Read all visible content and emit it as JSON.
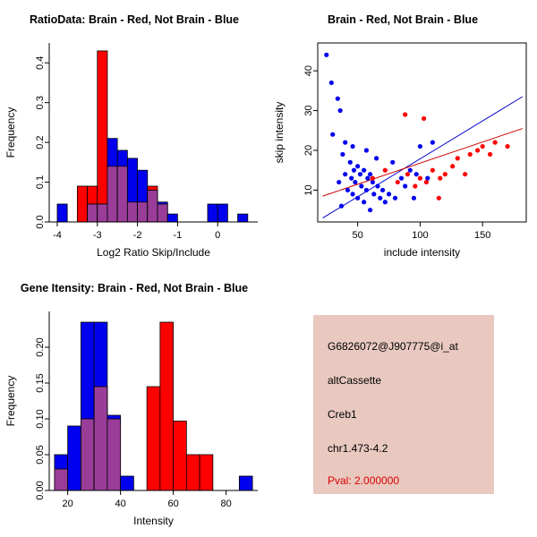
{
  "colors": {
    "brain": "#FF0000",
    "not_brain": "#0000EE",
    "overlap": "#993D99",
    "brain_line": "#CC0000",
    "not_brain_line": "#0000CC"
  },
  "chart_data": [
    {
      "id": "ratio_hist",
      "type": "bar",
      "subtype": "overlaid-histogram",
      "title": "RatioData: Brain - Red, Not Brain - Blue",
      "xlabel": "Log2 Ratio Skip/Include",
      "ylabel": "Frequency",
      "xlim": [
        -4.2,
        1.0
      ],
      "ylim": [
        0,
        0.45
      ],
      "xticks": [
        -4,
        -3,
        -2,
        -1,
        0
      ],
      "xtick_labels": [
        "-4",
        "-3",
        "-2",
        "-1",
        "0"
      ],
      "yticks": [
        0,
        0.1,
        0.2,
        0.3,
        0.4
      ],
      "ytick_labels": [
        "0.0",
        "0.1",
        "0.2",
        "0.3",
        "0.4"
      ],
      "bin_start": -4.0,
      "bin_width": 0.25,
      "overlap_color": "#993D99",
      "box": false,
      "series": [
        {
          "name": "Brain",
          "color": "#FF0000",
          "values": [
            0,
            0,
            0.09,
            0.09,
            0.43,
            0.14,
            0.14,
            0.05,
            0.05,
            0.09,
            0.045,
            0,
            0,
            0,
            0,
            0,
            0,
            0,
            0
          ]
        },
        {
          "name": "Not Brain",
          "color": "#0000EE",
          "values": [
            0.045,
            0,
            0,
            0.045,
            0.045,
            0.21,
            0.18,
            0.16,
            0.13,
            0.08,
            0.05,
            0.02,
            0,
            0,
            0,
            0.045,
            0.045,
            0,
            0.02
          ]
        }
      ]
    },
    {
      "id": "intensity_scatter",
      "type": "scatter",
      "title": "Brain - Red, Not Brain - Blue",
      "xlabel": "include intensity",
      "ylabel": "skip intensity",
      "xlim": [
        18,
        185
      ],
      "ylim": [
        2,
        47
      ],
      "xticks": [
        50,
        100,
        150
      ],
      "xtick_labels": [
        "50",
        "100",
        "150"
      ],
      "yticks": [
        10,
        20,
        30,
        40
      ],
      "ytick_labels": [
        "10",
        "20",
        "30",
        "40"
      ],
      "box": true,
      "series": [
        {
          "name": "Not Brain",
          "color": "#0000EE",
          "points": [
            [
              25,
              44
            ],
            [
              29,
              37
            ],
            [
              34,
              33
            ],
            [
              36,
              30
            ],
            [
              30,
              24
            ],
            [
              40,
              22
            ],
            [
              46,
              21
            ],
            [
              100,
              21
            ],
            [
              110,
              22
            ],
            [
              57,
              20
            ],
            [
              38,
              19
            ],
            [
              65,
              18
            ],
            [
              44,
              17
            ],
            [
              78,
              17
            ],
            [
              50,
              16
            ],
            [
              47,
              15
            ],
            [
              55,
              15
            ],
            [
              92,
              15
            ],
            [
              40,
              14
            ],
            [
              52,
              14
            ],
            [
              60,
              14
            ],
            [
              97,
              14
            ],
            [
              45,
              13
            ],
            [
              58,
              13
            ],
            [
              85,
              13
            ],
            [
              106,
              13
            ],
            [
              35,
              12
            ],
            [
              48,
              12
            ],
            [
              62,
              12
            ],
            [
              53,
              11
            ],
            [
              66,
              11
            ],
            [
              88,
              11
            ],
            [
              42,
              10
            ],
            [
              57,
              10
            ],
            [
              70,
              10
            ],
            [
              46,
              9
            ],
            [
              63,
              9
            ],
            [
              75,
              9
            ],
            [
              50,
              8
            ],
            [
              68,
              8
            ],
            [
              80,
              8
            ],
            [
              95,
              8
            ],
            [
              55,
              7
            ],
            [
              72,
              7
            ],
            [
              37,
              6
            ],
            [
              60,
              5
            ]
          ]
        },
        {
          "name": "Brain",
          "color": "#FF0000",
          "points": [
            [
              62,
              13
            ],
            [
              72,
              15
            ],
            [
              82,
              12
            ],
            [
              88,
              29
            ],
            [
              90,
              14
            ],
            [
              96,
              11
            ],
            [
              103,
              28
            ],
            [
              100,
              13
            ],
            [
              105,
              12
            ],
            [
              110,
              15
            ],
            [
              115,
              8
            ],
            [
              116,
              13
            ],
            [
              120,
              14
            ],
            [
              126,
              16
            ],
            [
              130,
              18
            ],
            [
              136,
              14
            ],
            [
              140,
              19
            ],
            [
              146,
              20
            ],
            [
              150,
              21
            ],
            [
              156,
              19
            ],
            [
              160,
              22
            ],
            [
              170,
              21
            ]
          ]
        }
      ],
      "fit_lines": [
        {
          "name": "not-brain-fit",
          "color": "#0000CC",
          "x1": 22,
          "y1": 3,
          "x2": 182,
          "y2": 33.5
        },
        {
          "name": "brain-fit",
          "color": "#CC0000",
          "x1": 22,
          "y1": 8.5,
          "x2": 182,
          "y2": 25.5
        }
      ]
    },
    {
      "id": "gene_hist",
      "type": "bar",
      "subtype": "overlaid-histogram",
      "title": "Gene Itensity: Brain - Red, Not Brain - Blue",
      "xlabel": "Intensity",
      "ylabel": "Frequency",
      "xlim": [
        13,
        92
      ],
      "ylim": [
        0,
        0.25
      ],
      "xticks": [
        20,
        40,
        60,
        80
      ],
      "xtick_labels": [
        "20",
        "40",
        "60",
        "80"
      ],
      "yticks": [
        0,
        0.05,
        0.1,
        0.15,
        0.2
      ],
      "ytick_labels": [
        "0.00",
        "0.05",
        "0.10",
        "0.15",
        "0.20"
      ],
      "bin_start": 15,
      "bin_width": 5,
      "overlap_color": "#993D99",
      "box": false,
      "series": [
        {
          "name": "Brain",
          "color": "#FF0000",
          "values": [
            0.03,
            0,
            0.1,
            0.145,
            0.1,
            0,
            0,
            0.145,
            0.235,
            0.097,
            0.05,
            0.05,
            0,
            0,
            0
          ]
        },
        {
          "name": "Not Brain",
          "color": "#0000EE",
          "values": [
            0.05,
            0.09,
            0.235,
            0.235,
            0.105,
            0.02,
            0,
            0,
            0,
            0,
            0,
            0,
            0,
            0,
            0.02
          ]
        }
      ]
    }
  ],
  "info_box": {
    "bg": "#E8C8BF",
    "text_color": "#000000",
    "pval_color": "#DD0000",
    "probe_id": "G6826072@J907775@i_at",
    "event_type": "altCassette",
    "gene": "Creb1",
    "location": "chr1.473-4.2",
    "pval": "Pval: 2.000000"
  }
}
